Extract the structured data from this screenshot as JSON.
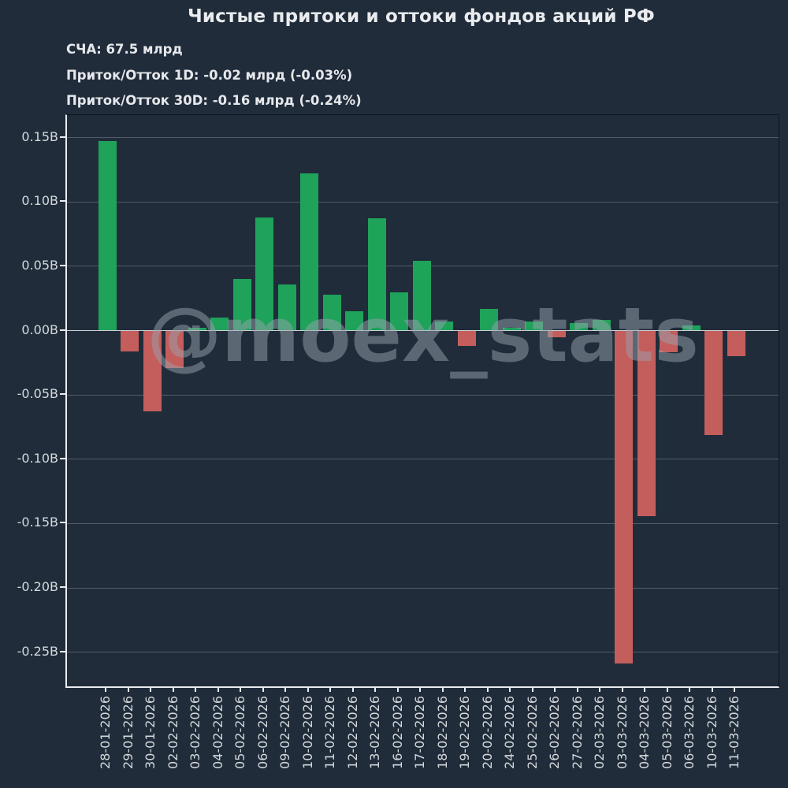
{
  "title": "Чистые притоки и оттоки фондов акций РФ",
  "subtitle": {
    "lines": [
      "СЧА: 67.5 млрд",
      "Приток/Отток 1D: -0.02 млрд (-0.03%)",
      "Приток/Отток 30D: -0.16 млрд (-0.24%)"
    ]
  },
  "watermark": "@moex_stats",
  "colors": {
    "background": "#202c3a",
    "positive_bar": "#1fa25a",
    "negative_bar": "#c45e5c",
    "gridline": "#515c6a",
    "zero_line": "#ccd2d8",
    "axis": "#e9ecef",
    "text": "#e9ebee",
    "tick_text": "#d4d8db",
    "watermark": "rgba(151,161,173,0.5)"
  },
  "chart_data": {
    "type": "bar",
    "title": "Чистые притоки и оттоки фондов акций РФ",
    "xlabel": "",
    "ylabel": "",
    "unit": "B (млрд)",
    "grid": true,
    "legend": false,
    "ylim": [
      -0.2765,
      0.1675
    ],
    "ytick_values": [
      0.15,
      0.1,
      0.05,
      0.0,
      -0.05,
      -0.1,
      -0.15,
      -0.2,
      -0.25
    ],
    "ytick_labels": [
      "0.15B",
      "0.10B",
      "0.05B",
      "0.00B",
      "-0.05B",
      "-0.10B",
      "-0.15B",
      "-0.20B",
      "-0.25B"
    ],
    "categories": [
      "28-01-2026",
      "29-01-2026",
      "30-01-2026",
      "02-02-2026",
      "03-02-2026",
      "04-02-2026",
      "05-02-2026",
      "06-02-2026",
      "09-02-2026",
      "10-02-2026",
      "11-02-2026",
      "12-02-2026",
      "13-02-2026",
      "16-02-2026",
      "17-02-2026",
      "18-02-2026",
      "19-02-2026",
      "20-02-2026",
      "24-02-2026",
      "25-02-2026",
      "26-02-2026",
      "27-02-2026",
      "02-03-2026",
      "03-03-2026",
      "04-03-2026",
      "05-03-2026",
      "06-03-2026",
      "10-03-2026",
      "11-03-2026"
    ],
    "values": [
      0.147,
      -0.016,
      -0.063,
      -0.029,
      0.002,
      0.01,
      0.04,
      0.088,
      0.036,
      0.122,
      0.028,
      0.015,
      0.087,
      0.03,
      0.054,
      0.007,
      -0.012,
      0.017,
      0.002,
      0.007,
      -0.005,
      0.006,
      0.008,
      -0.259,
      -0.144,
      -0.017,
      0.004,
      -0.081,
      -0.02
    ]
  }
}
